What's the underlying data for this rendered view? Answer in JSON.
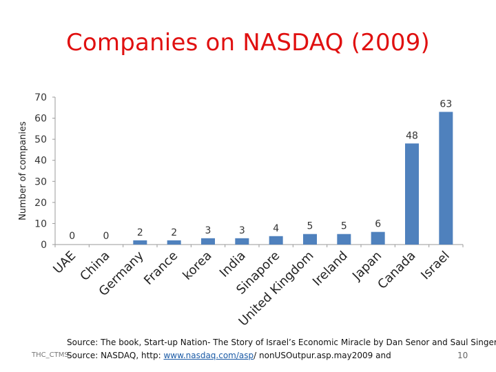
{
  "title": "Companies on NASDAQ (2009)",
  "chart_data": {
    "type": "bar",
    "categories": [
      "UAE",
      "China",
      "Germany",
      "France",
      "korea",
      "India",
      "Sinapore",
      "United Kingdom",
      "Ireland",
      "Japan",
      "Canada",
      "Israel"
    ],
    "values": [
      0,
      0,
      2,
      2,
      3,
      3,
      4,
      5,
      5,
      6,
      48,
      63
    ],
    "ylabel": "Number of companies",
    "xlabel": "",
    "ylim": [
      0,
      70
    ],
    "yticks": [
      0,
      10,
      20,
      30,
      40,
      50,
      60,
      70
    ],
    "bar_color": "#4f81bd",
    "grid": false,
    "legend": "none"
  },
  "footer": {
    "source_line1": "Source: The book, Start-up Nation- The Story of Israel’s Economic Miracle by Dan Senor and Saul Singer",
    "left_tag": "THC_CTMS",
    "source_line2_prefix": "Source: NASDAQ, http: ",
    "source_line2_link": "www.nasdaq.com/asp",
    "source_line2_suffix": "/ nonUSOutpur.asp.may2009 and",
    "page_number": "10"
  }
}
